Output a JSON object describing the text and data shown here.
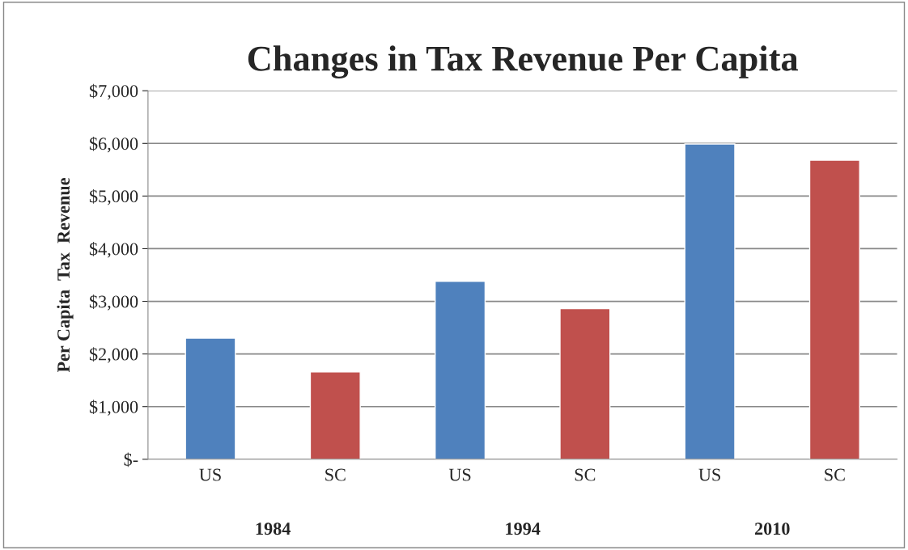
{
  "chart_data": {
    "type": "bar",
    "title": "Changes in Tax Revenue Per Capita",
    "ylabel": "Per Capita  Tax  Revenue",
    "categories": [
      "US",
      "SC",
      "US",
      "SC",
      "US",
      "SC"
    ],
    "values": [
      2300,
      1660,
      3380,
      2860,
      5990,
      5680
    ],
    "colors": [
      "#4f81bd",
      "#c0504d",
      "#4f81bd",
      "#c0504d",
      "#4f81bd",
      "#c0504d"
    ],
    "annotations": [
      "1984",
      "1994",
      "2010"
    ],
    "ylim": [
      0,
      7000
    ],
    "yticks": [
      {
        "value": 0,
        "label": "$-"
      },
      {
        "value": 1000,
        "label": "$1,000"
      },
      {
        "value": 2000,
        "label": "$2,000"
      },
      {
        "value": 3000,
        "label": "$3,000"
      },
      {
        "value": 4000,
        "label": "$4,000"
      },
      {
        "value": 5000,
        "label": "$5,000"
      },
      {
        "value": 6000,
        "label": "$6,000"
      },
      {
        "value": 7000,
        "label": "$7,000"
      }
    ],
    "grid": "y"
  }
}
